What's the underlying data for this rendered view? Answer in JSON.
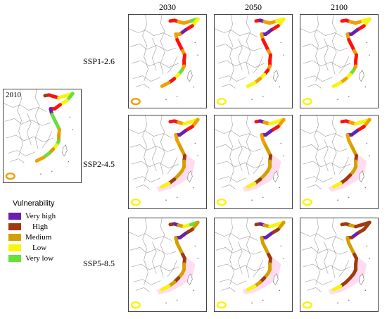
{
  "columns": [
    "2030",
    "2050",
    "2100"
  ],
  "rows": [
    "SSP1-2.6",
    "SSP2-4.5",
    "SSP5-8.5"
  ],
  "baseline_label": "2010",
  "legend": {
    "title": "Vulnerability",
    "items": [
      {
        "label": "Very high",
        "color": "#6a1fb0"
      },
      {
        "label": "High",
        "color": "#a0390f"
      },
      {
        "label": "Medium",
        "color": "#d4a000"
      },
      {
        "label": "Low",
        "color": "#f8f40a"
      },
      {
        "label": "Very low",
        "color": "#66e03a"
      }
    ]
  },
  "colors": {
    "very_high": "#6a1fb0",
    "high": "#a0390f",
    "medium": "#d4a000",
    "low": "#f8f40a",
    "very_low": "#66e03a",
    "red": "#ff1010",
    "orange": "#f0a000",
    "pink_haze": "#ffd0ec",
    "boundary": "#9a9a9a"
  },
  "maps": {
    "baseline": [
      "high",
      "red",
      "red",
      "low",
      "low",
      "very_low",
      "low",
      "red",
      "red",
      "very_high",
      "very_low",
      "very_low",
      "very_low",
      "orange",
      "medium",
      "very_low",
      "low",
      "medium",
      "very_low",
      "orange"
    ],
    "SSP1-2.6": {
      "2030": [
        "red",
        "red",
        "orange",
        "orange",
        "very_low",
        "low",
        "red",
        "very_high",
        "orange",
        "orange",
        "red",
        "red",
        "orange",
        "red",
        "red",
        "orange",
        "very_low",
        "low",
        "red",
        "orange"
      ],
      "2050": [
        "red",
        "very_high",
        "orange",
        "orange",
        "low",
        "low",
        "red",
        "very_high",
        "very_high",
        "orange",
        "red",
        "red",
        "orange",
        "red",
        "red",
        "orange",
        "red",
        "low",
        "orange",
        "low"
      ],
      "2100": [
        "red",
        "red",
        "orange",
        "orange",
        "low",
        "low",
        "red",
        "very_high",
        "very_high",
        "orange",
        "red",
        "red",
        "orange",
        "red",
        "red",
        "orange",
        "very_low",
        "low",
        "orange",
        "low"
      ]
    },
    "SSP2-4.5": {
      "2030": [
        "red",
        "red",
        "orange",
        "low",
        "low",
        "orange",
        "red",
        "very_high",
        "very_high",
        "orange",
        "orange",
        "medium",
        "medium",
        "high",
        "medium",
        "medium",
        "medium",
        "medium",
        "high",
        "low"
      ],
      "2050": [
        "red",
        "very_high",
        "orange",
        "low",
        "low",
        "orange",
        "red",
        "very_high",
        "very_high",
        "orange",
        "orange",
        "medium",
        "medium",
        "high",
        "medium",
        "medium",
        "medium",
        "medium",
        "high",
        "low"
      ],
      "2100": [
        "red",
        "red",
        "orange",
        "low",
        "low",
        "orange",
        "red",
        "very_high",
        "very_high",
        "orange",
        "orange",
        "medium",
        "medium",
        "high",
        "medium",
        "medium",
        "medium",
        "high",
        "high",
        "low"
      ]
    },
    "SSP5-8.5": {
      "2030": [
        "high",
        "very_high",
        "medium",
        "low",
        "very_low",
        "medium",
        "high",
        "very_high",
        "very_high",
        "medium",
        "medium",
        "medium",
        "high",
        "high",
        "medium",
        "medium",
        "medium",
        "high",
        "medium",
        "low"
      ],
      "2050": [
        "high",
        "very_high",
        "medium",
        "low",
        "low",
        "medium",
        "high",
        "very_high",
        "very_high",
        "medium",
        "medium",
        "medium",
        "high",
        "high",
        "medium",
        "medium",
        "medium",
        "high",
        "medium",
        "low"
      ],
      "2100": [
        "high",
        "high",
        "medium",
        "high",
        "high",
        "high",
        "high",
        "very_high",
        "high",
        "medium",
        "medium",
        "medium",
        "high",
        "high",
        "high",
        "high",
        "high",
        "high",
        "high",
        "low"
      ]
    }
  }
}
